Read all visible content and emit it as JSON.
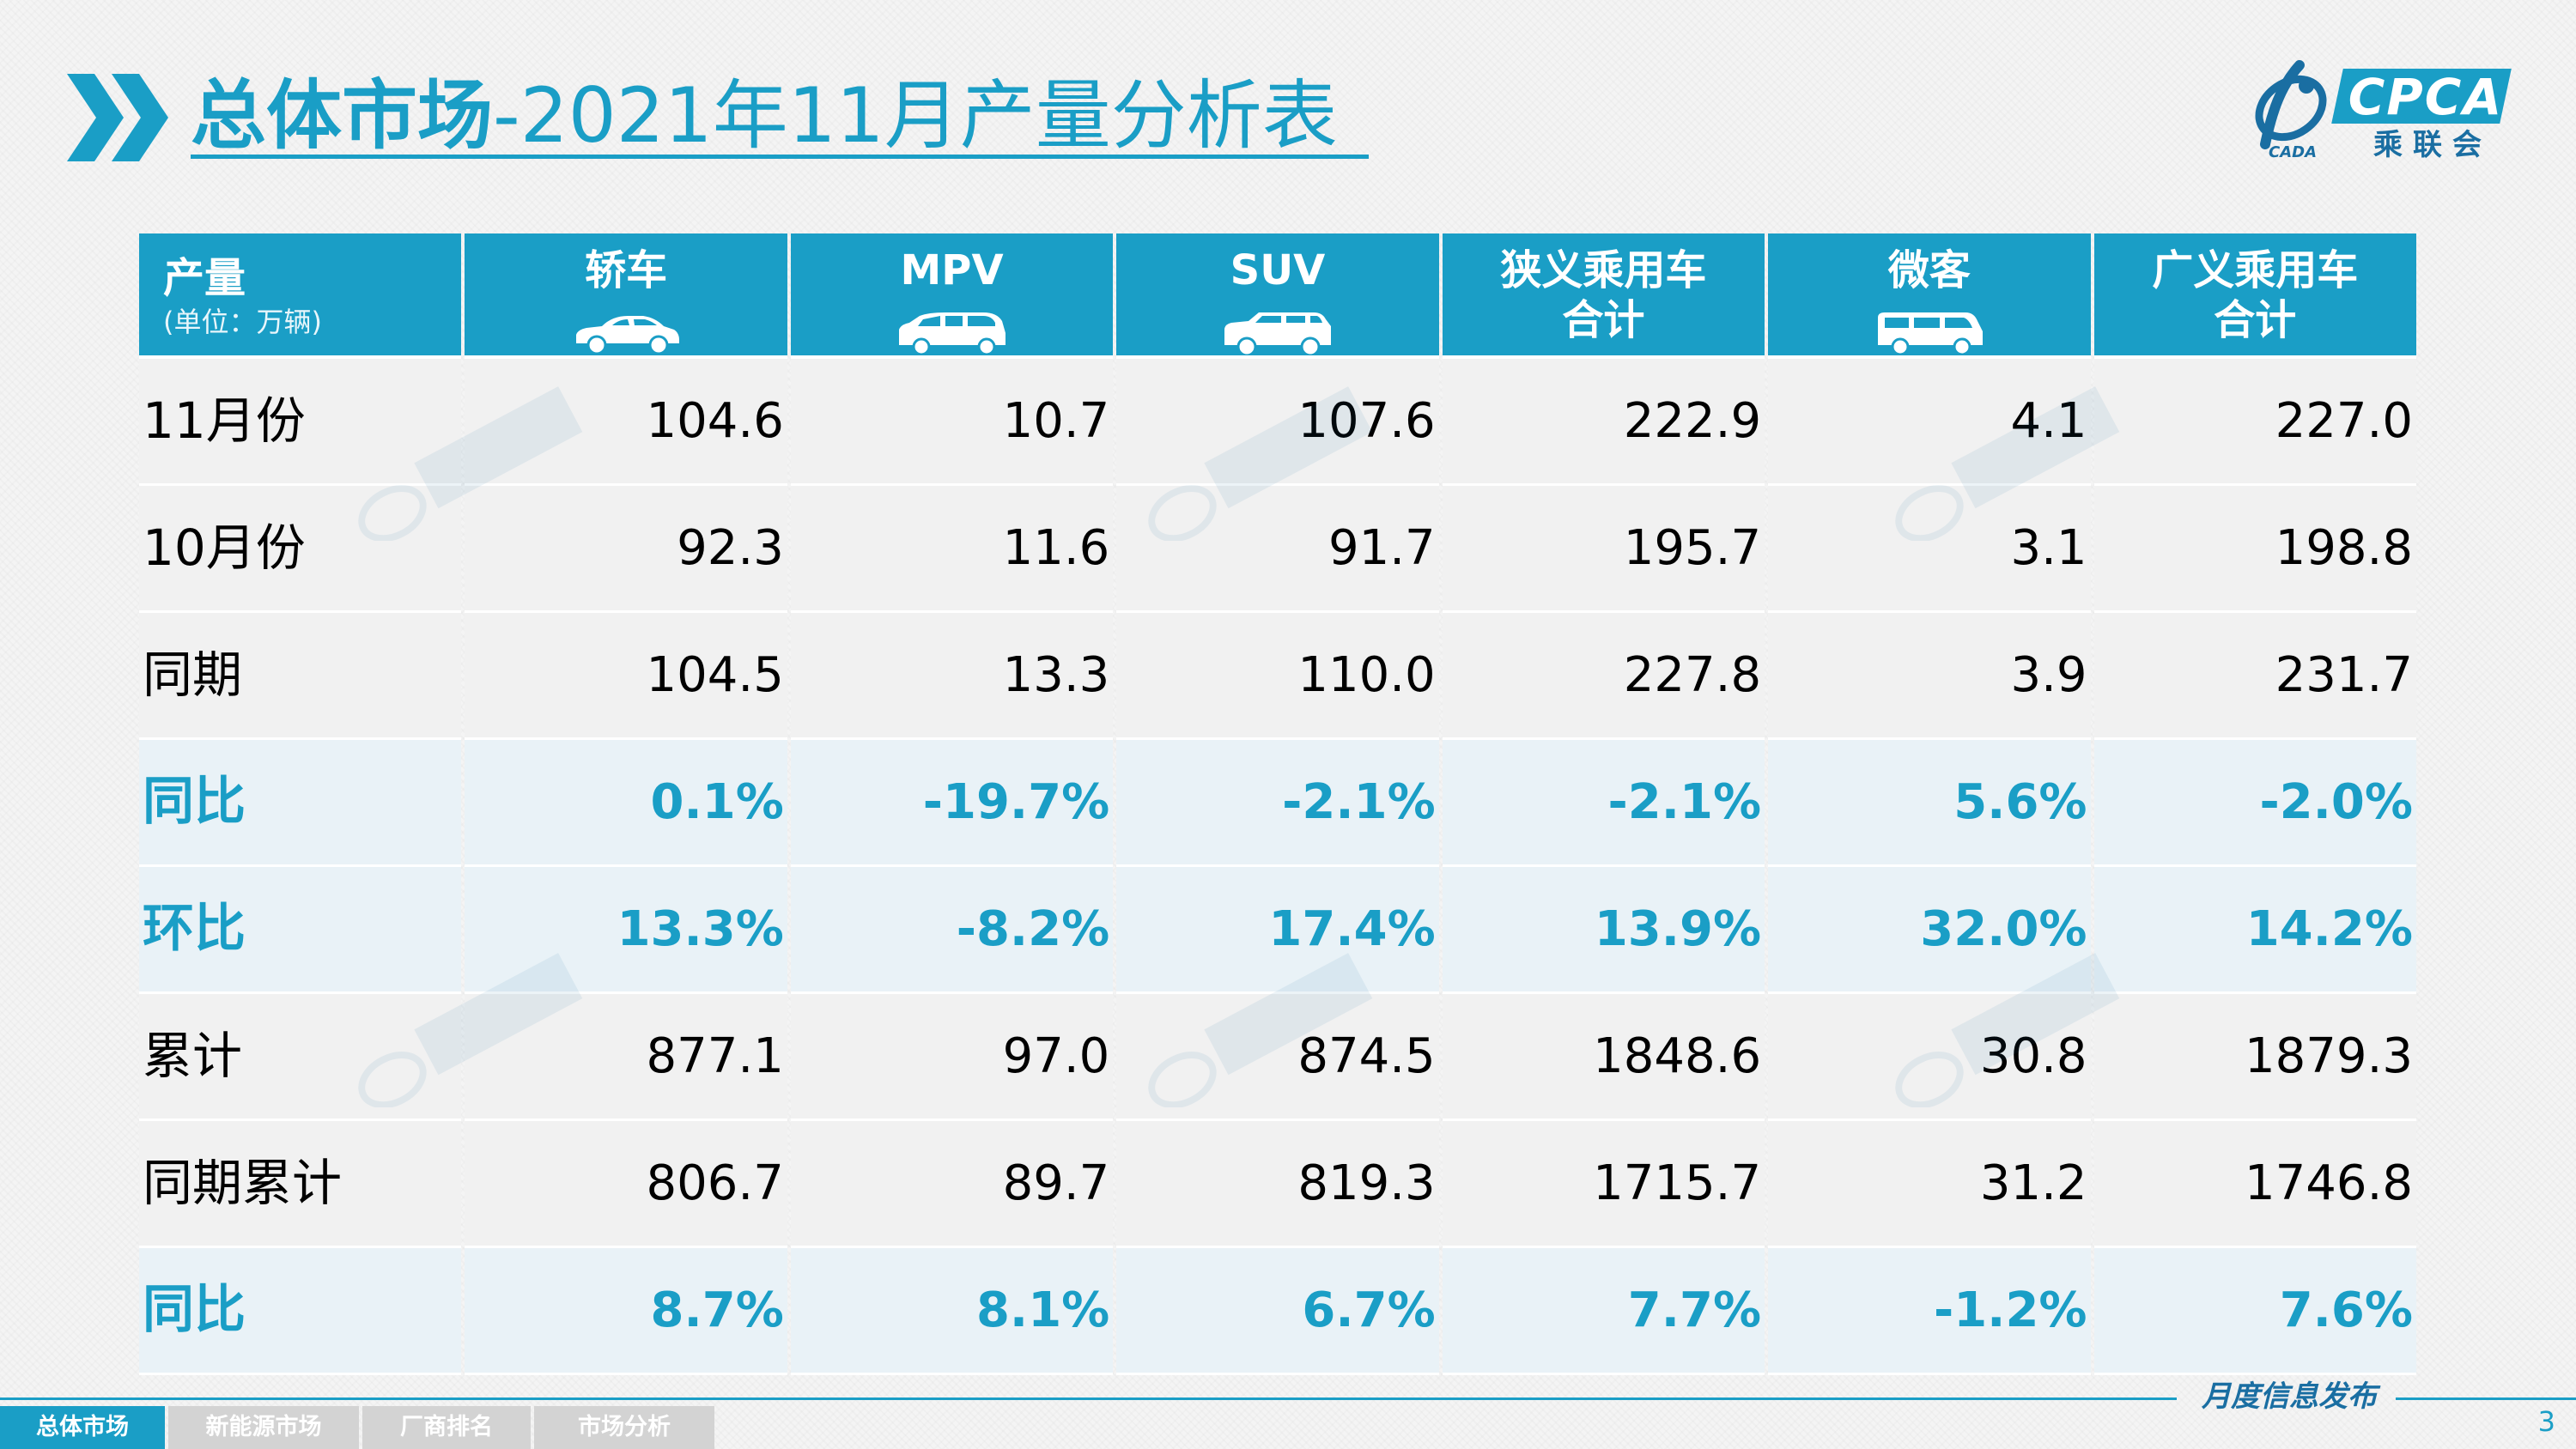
{
  "title": {
    "bold": "总体市场",
    "rest": "-2021年11月产量分析表"
  },
  "logo": {
    "brand": "CPCA",
    "cn": "乘联会",
    "sub": "CADA"
  },
  "table": {
    "header_first": {
      "label": "产量",
      "unit": "(单位：万辆)"
    },
    "columns": [
      {
        "line1": "轿车",
        "line2": "",
        "icon": "sedan-icon"
      },
      {
        "line1": "MPV",
        "line2": "",
        "icon": "mpv-icon"
      },
      {
        "line1": "SUV",
        "line2": "",
        "icon": "suv-icon"
      },
      {
        "line1": "狭义乘用车",
        "line2": "合计",
        "icon": ""
      },
      {
        "line1": "微客",
        "line2": "",
        "icon": "minivan-icon"
      },
      {
        "line1": "广义乘用车",
        "line2": "合计",
        "icon": ""
      }
    ],
    "rows": [
      {
        "label": "11月份",
        "values": [
          "104.6",
          "10.7",
          "107.6",
          "222.9",
          "4.1",
          "227.0"
        ],
        "highlight": false
      },
      {
        "label": "10月份",
        "values": [
          "92.3",
          "11.6",
          "91.7",
          "195.7",
          "3.1",
          "198.8"
        ],
        "highlight": false
      },
      {
        "label": "同期",
        "values": [
          "104.5",
          "13.3",
          "110.0",
          "227.8",
          "3.9",
          "231.7"
        ],
        "highlight": false
      },
      {
        "label": "同比",
        "values": [
          "0.1%",
          "-19.7%",
          "-2.1%",
          "-2.1%",
          "5.6%",
          "-2.0%"
        ],
        "highlight": true
      },
      {
        "label": "环比",
        "values": [
          "13.3%",
          "-8.2%",
          "17.4%",
          "13.9%",
          "32.0%",
          "14.2%"
        ],
        "highlight": true
      },
      {
        "label": "累计",
        "values": [
          "877.1",
          "97.0",
          "874.5",
          "1848.6",
          "30.8",
          "1879.3"
        ],
        "highlight": false
      },
      {
        "label": "同期累计",
        "values": [
          "806.7",
          "89.7",
          "819.3",
          "1715.7",
          "31.2",
          "1746.8"
        ],
        "highlight": false
      },
      {
        "label": "同比",
        "values": [
          "8.7%",
          "8.1%",
          "6.7%",
          "7.7%",
          "-1.2%",
          "7.6%"
        ],
        "highlight": true
      }
    ]
  },
  "footer": {
    "label": "月度信息发布",
    "tabs": [
      "总体市场",
      "新能源市场",
      "厂商排名",
      "市场分析"
    ],
    "active_tab": 0,
    "page": "3"
  },
  "colors": {
    "accent": "#1a9ec6",
    "footer_blue": "#1a6ea2",
    "inactive_tab": "#d3d3d3"
  }
}
